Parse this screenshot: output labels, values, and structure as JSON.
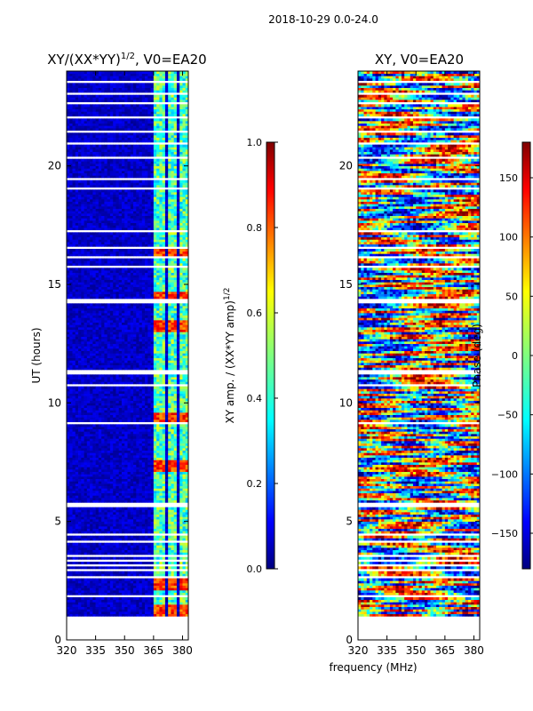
{
  "suptitle": "2018-10-29 0.0-24.0",
  "colors": {
    "jet": [
      "#00007f",
      "#0000ff",
      "#007fff",
      "#00ffff",
      "#7fff7f",
      "#ffff00",
      "#ff7f00",
      "#ff0000",
      "#7f0000"
    ],
    "gap": "#ffffff",
    "frame": "#000000"
  },
  "chart_data": [
    {
      "type": "heatmap",
      "title": "XY/(XX*YY)",
      "title_superscript": "1/2",
      "title_suffix": ", V0=EA20",
      "xlabel": "",
      "ylabel": "UT (hours)",
      "xlim": [
        320,
        383
      ],
      "ylim": [
        0,
        24
      ],
      "xticks": [
        320,
        335,
        350,
        365,
        380
      ],
      "yticks": [
        0,
        5,
        10,
        15,
        20
      ],
      "data_start_hour": 1.0,
      "channel_bands_mhz": [
        [
          364,
          371
        ],
        [
          372,
          377
        ],
        [
          378,
          382
        ]
      ],
      "hot_rows_hours": [
        1.2,
        2.3,
        7.3,
        9.3,
        13.2,
        14.4,
        16.3
      ],
      "colorbar": {
        "label": "XY amp. / (XX*YY amp)",
        "label_superscript": "1/2",
        "range": [
          0.0,
          1.0
        ],
        "ticks": [
          0.0,
          0.2,
          0.4,
          0.6,
          0.8,
          1.0
        ],
        "tick_labels": [
          "0.0",
          "0.2",
          "0.4",
          "0.6",
          "0.8",
          "1.0"
        ]
      }
    },
    {
      "type": "heatmap",
      "title": "XY, V0=EA20",
      "xlabel": "frequency (MHz)",
      "ylabel": "",
      "xlim": [
        320,
        383
      ],
      "ylim": [
        0,
        24
      ],
      "xticks": [
        320,
        335,
        350,
        365,
        380
      ],
      "yticks": [
        0,
        5,
        10,
        15,
        20
      ],
      "data_start_hour": 1.0,
      "colorbar": {
        "label": "Phase (deg)",
        "range": [
          -180,
          180
        ],
        "ticks": [
          -150,
          -100,
          -50,
          0,
          50,
          100,
          150
        ],
        "tick_labels": [
          "−150",
          "−100",
          "−50",
          "0",
          "50",
          "100",
          "150"
        ]
      }
    }
  ],
  "flagged_gaps_hours": [
    [
      1.75,
      1.85
    ],
    [
      2.12,
      2.2
    ],
    [
      2.55,
      2.62
    ],
    [
      2.85,
      2.92
    ],
    [
      3.05,
      3.12
    ],
    [
      3.3,
      3.36
    ],
    [
      3.5,
      3.56
    ],
    [
      4.1,
      4.16
    ],
    [
      4.4,
      4.46
    ],
    [
      5.0,
      5.06
    ],
    [
      5.5,
      5.7
    ],
    [
      6.2,
      6.26
    ],
    [
      6.7,
      6.76
    ],
    [
      7.0,
      7.06
    ],
    [
      7.7,
      7.76
    ],
    [
      8.1,
      8.16
    ],
    [
      8.5,
      8.56
    ],
    [
      8.8,
      8.88
    ],
    [
      9.0,
      9.1
    ],
    [
      10.6,
      10.7
    ],
    [
      11.1,
      11.35
    ],
    [
      12.0,
      12.06
    ],
    [
      12.5,
      12.56
    ],
    [
      13.7,
      13.76
    ],
    [
      14.1,
      14.3
    ],
    [
      14.9,
      14.96
    ],
    [
      15.3,
      15.36
    ],
    [
      15.65,
      15.72
    ],
    [
      16.0,
      16.1
    ],
    [
      16.4,
      16.5
    ],
    [
      16.8,
      16.86
    ],
    [
      17.1,
      17.2
    ],
    [
      17.5,
      17.56
    ],
    [
      17.9,
      17.96
    ],
    [
      18.6,
      18.66
    ],
    [
      18.95,
      19.05
    ],
    [
      19.4,
      19.46
    ],
    [
      20.3,
      20.36
    ],
    [
      20.9,
      20.96
    ],
    [
      21.4,
      21.46
    ],
    [
      22.0,
      22.06
    ],
    [
      22.6,
      22.66
    ],
    [
      23.0,
      23.06
    ],
    [
      23.5,
      23.56
    ]
  ]
}
